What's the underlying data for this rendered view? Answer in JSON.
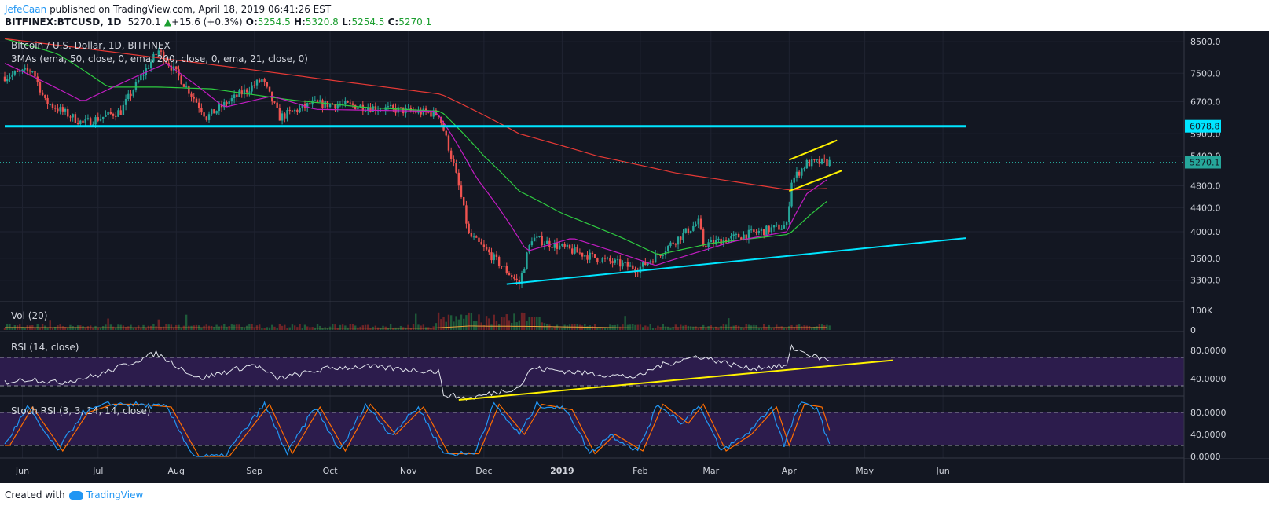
{
  "header": {
    "author": "JefeCaan",
    "published": "published on TradingView.com, April 18, 2019 06:41:26 EST",
    "symbol": "BITFINEX:BTCUSD, 1D",
    "last": "5270.1",
    "change": "+15.6 (+0.3%)",
    "o_label": "O:",
    "o": "5254.5",
    "h_label": "H:",
    "h": "5320.8",
    "l_label": "L:",
    "l": "5254.5",
    "c_label": "C:",
    "c": "5270.1"
  },
  "footer": {
    "created_with": "Created with",
    "brand": "TradingView"
  },
  "colors": {
    "bg": "#131722",
    "up": "#26a69a",
    "down": "#ef5350",
    "cyan": "#00e5ff",
    "yellow": "#fff200",
    "ema50": "#2ecc40",
    "ema200": "#e53935",
    "ema21": "#c21cc2",
    "rsi_fill": "#2c1c4c",
    "stoch_k": "#2196f3",
    "stoch_d": "#ff6d00"
  },
  "chart_data": [
    {
      "type": "candlestick",
      "title": "Bitcoin / U.S. Dollar, 1D, BITFINEX",
      "indicator_label": "3MAs (ema, 50, close, 0, ema, 200, close, 0, ema, 21, close, 0)",
      "x_ticks": [
        "Jun",
        "Jul",
        "Aug",
        "Sep",
        "Oct",
        "Nov",
        "Dec",
        "2019",
        "Feb",
        "Mar",
        "Apr",
        "May",
        "Jun"
      ],
      "y_ticks": [
        8500.0,
        7500.0,
        6700.0,
        5900.0,
        5400.0,
        4800.0,
        4400.0,
        4000.0,
        3600.0,
        3300.0
      ],
      "y_tick_labels": [
        "8500.0",
        "7500.0",
        "6700.0",
        "5900.0",
        "5400.0",
        "4800.0",
        "4400.0",
        "4000.0",
        "3600.0",
        "3300.0"
      ],
      "y_scale": "log",
      "ylim": [
        3050,
        8800
      ],
      "price_labels": [
        {
          "value": 6078.8,
          "text": "6078.8",
          "color": "#00e5ff"
        },
        {
          "value": 5270.1,
          "text": "5270.1",
          "color": "#26a69a"
        }
      ],
      "close_anchors": [
        {
          "date": "2018-05-25",
          "close": 7400
        },
        {
          "date": "2018-06-05",
          "close": 7600
        },
        {
          "date": "2018-06-10",
          "close": 6700
        },
        {
          "date": "2018-06-25",
          "close": 6150
        },
        {
          "date": "2018-07-10",
          "close": 6450
        },
        {
          "date": "2018-07-25",
          "close": 8200
        },
        {
          "date": "2018-08-13",
          "close": 6300
        },
        {
          "date": "2018-09-04",
          "close": 7300
        },
        {
          "date": "2018-09-11",
          "close": 6300
        },
        {
          "date": "2018-09-24",
          "close": 6650
        },
        {
          "date": "2018-10-10",
          "close": 6600
        },
        {
          "date": "2018-11-13",
          "close": 6380
        },
        {
          "date": "2018-11-19",
          "close": 5200
        },
        {
          "date": "2018-11-25",
          "close": 3950
        },
        {
          "date": "2018-12-15",
          "close": 3250
        },
        {
          "date": "2018-12-20",
          "close": 3900
        },
        {
          "date": "2019-01-10",
          "close": 3650
        },
        {
          "date": "2019-01-31",
          "close": 3450
        },
        {
          "date": "2019-02-08",
          "close": 3650
        },
        {
          "date": "2019-02-24",
          "close": 4150
        },
        {
          "date": "2019-02-26",
          "close": 3800
        },
        {
          "date": "2019-03-31",
          "close": 4100
        },
        {
          "date": "2019-04-02",
          "close": 4900
        },
        {
          "date": "2019-04-08",
          "close": 5250
        },
        {
          "date": "2019-04-17",
          "close": 5270.1
        }
      ],
      "series": [
        {
          "name": "EMA 50",
          "color": "#2ecc40",
          "points": [
            {
              "date": "2018-05-25",
              "value": 8600
            },
            {
              "date": "2018-06-15",
              "value": 8100
            },
            {
              "date": "2018-07-05",
              "value": 7100
            },
            {
              "date": "2018-07-25",
              "value": 7100
            },
            {
              "date": "2018-08-15",
              "value": 7050
            },
            {
              "date": "2018-09-15",
              "value": 6750
            },
            {
              "date": "2018-10-15",
              "value": 6550
            },
            {
              "date": "2018-11-14",
              "value": 6450
            },
            {
              "date": "2018-12-01",
              "value": 5400
            },
            {
              "date": "2018-12-15",
              "value": 4700
            },
            {
              "date": "2019-01-01",
              "value": 4300
            },
            {
              "date": "2019-01-25",
              "value": 3900
            },
            {
              "date": "2019-02-08",
              "value": 3650
            },
            {
              "date": "2019-03-01",
              "value": 3820
            },
            {
              "date": "2019-04-01",
              "value": 3960
            },
            {
              "date": "2019-04-10",
              "value": 4300
            },
            {
              "date": "2019-04-17",
              "value": 4550
            }
          ]
        },
        {
          "name": "EMA 200",
          "color": "#e53935",
          "points": [
            {
              "date": "2018-05-25",
              "value": 8600
            },
            {
              "date": "2018-08-01",
              "value": 7900
            },
            {
              "date": "2018-10-01",
              "value": 7300
            },
            {
              "date": "2018-11-14",
              "value": 6900
            },
            {
              "date": "2018-12-15",
              "value": 5900
            },
            {
              "date": "2019-01-15",
              "value": 5400
            },
            {
              "date": "2019-02-15",
              "value": 5050
            },
            {
              "date": "2019-04-01",
              "value": 4720
            },
            {
              "date": "2019-04-17",
              "value": 4750
            }
          ]
        },
        {
          "name": "EMA 21",
          "color": "#c21cc2",
          "points": [
            {
              "date": "2018-05-25",
              "value": 7800
            },
            {
              "date": "2018-06-25",
              "value": 6700
            },
            {
              "date": "2018-07-28",
              "value": 7800
            },
            {
              "date": "2018-08-20",
              "value": 6550
            },
            {
              "date": "2018-09-08",
              "value": 6850
            },
            {
              "date": "2018-09-25",
              "value": 6500
            },
            {
              "date": "2018-11-12",
              "value": 6450
            },
            {
              "date": "2018-11-28",
              "value": 4950
            },
            {
              "date": "2018-12-18",
              "value": 3700
            },
            {
              "date": "2019-01-05",
              "value": 3900
            },
            {
              "date": "2019-02-07",
              "value": 3500
            },
            {
              "date": "2019-03-10",
              "value": 3850
            },
            {
              "date": "2019-03-31",
              "value": 4000
            },
            {
              "date": "2019-04-08",
              "value": 4650
            },
            {
              "date": "2019-04-17",
              "value": 4950
            }
          ]
        }
      ],
      "trendlines": [
        {
          "name": "horizontal-resistance",
          "color": "#00e5ff",
          "from": {
            "date": "2018-05-25",
            "value": 6078.8
          },
          "to": {
            "date": "2019-06-10",
            "value": 6078.8
          }
        },
        {
          "name": "ascending-support",
          "color": "#00e5ff",
          "from": {
            "date": "2018-12-10",
            "value": 3250
          },
          "to": {
            "date": "2019-06-10",
            "value": 3900
          }
        },
        {
          "name": "channel-upper",
          "color": "#fff200",
          "from": {
            "date": "2019-04-01",
            "value": 5320
          },
          "to": {
            "date": "2019-04-20",
            "value": 5750
          }
        },
        {
          "name": "channel-lower",
          "color": "#fff200",
          "from": {
            "date": "2019-04-01",
            "value": 4700
          },
          "to": {
            "date": "2019-04-22",
            "value": 5100
          }
        }
      ]
    },
    {
      "type": "bar",
      "title": "Vol (20)",
      "y_tick_labels": [
        "100K",
        "0"
      ],
      "y_ticks": [
        100000,
        0
      ],
      "volume_ma_anchors": [
        {
          "date": "2018-05-25",
          "value": 12000
        },
        {
          "date": "2018-11-10",
          "value": 9000
        },
        {
          "date": "2018-11-25",
          "value": 20000
        },
        {
          "date": "2018-12-20",
          "value": 18000
        },
        {
          "date": "2019-01-31",
          "value": 10000
        },
        {
          "date": "2019-04-17",
          "value": 12000
        }
      ]
    },
    {
      "type": "line",
      "title": "RSI (14, close)",
      "y_ticks": [
        80,
        40
      ],
      "y_tick_labels": [
        "80.0000",
        "40.0000"
      ],
      "bands": [
        70,
        30
      ],
      "rsi_anchors": [
        {
          "date": "2018-05-25",
          "value": 35
        },
        {
          "date": "2018-06-05",
          "value": 40
        },
        {
          "date": "2018-06-15",
          "value": 34
        },
        {
          "date": "2018-07-01",
          "value": 45
        },
        {
          "date": "2018-07-24",
          "value": 76
        },
        {
          "date": "2018-08-10",
          "value": 40
        },
        {
          "date": "2018-09-01",
          "value": 60
        },
        {
          "date": "2018-09-10",
          "value": 40
        },
        {
          "date": "2018-10-01",
          "value": 55
        },
        {
          "date": "2018-10-15",
          "value": 57
        },
        {
          "date": "2018-11-13",
          "value": 50
        },
        {
          "date": "2018-11-15",
          "value": 18
        },
        {
          "date": "2018-11-25",
          "value": 12
        },
        {
          "date": "2018-12-15",
          "value": 28
        },
        {
          "date": "2018-12-20",
          "value": 55
        },
        {
          "date": "2019-01-10",
          "value": 48
        },
        {
          "date": "2019-01-31",
          "value": 42
        },
        {
          "date": "2019-02-08",
          "value": 58
        },
        {
          "date": "2019-02-24",
          "value": 72
        },
        {
          "date": "2019-03-15",
          "value": 55
        },
        {
          "date": "2019-03-31",
          "value": 58
        },
        {
          "date": "2019-04-02",
          "value": 84
        },
        {
          "date": "2019-04-12",
          "value": 70
        },
        {
          "date": "2019-04-17",
          "value": 67
        }
      ],
      "trendline": {
        "color": "#fff200",
        "from": {
          "date": "2018-11-21",
          "value": 10
        },
        "to": {
          "date": "2019-05-12",
          "value": 66
        }
      }
    },
    {
      "type": "line",
      "title": "Stoch RSI (3, 3, 14, 14, close)",
      "y_ticks": [
        80,
        40,
        0
      ],
      "y_tick_labels": [
        "80.0000",
        "40.0000",
        "0.0000"
      ],
      "bands": [
        80,
        20
      ],
      "k_anchors": [
        {
          "date": "2018-05-25",
          "value": 20
        },
        {
          "date": "2018-06-03",
          "value": 90
        },
        {
          "date": "2018-06-15",
          "value": 10
        },
        {
          "date": "2018-06-25",
          "value": 80
        },
        {
          "date": "2018-07-05",
          "value": 95
        },
        {
          "date": "2018-07-15",
          "value": 95
        },
        {
          "date": "2018-07-28",
          "value": 90
        },
        {
          "date": "2018-08-08",
          "value": 0
        },
        {
          "date": "2018-08-20",
          "value": 0
        },
        {
          "date": "2018-09-05",
          "value": 95
        },
        {
          "date": "2018-09-14",
          "value": 5
        },
        {
          "date": "2018-09-25",
          "value": 90
        },
        {
          "date": "2018-10-05",
          "value": 10
        },
        {
          "date": "2018-10-15",
          "value": 95
        },
        {
          "date": "2018-10-25",
          "value": 40
        },
        {
          "date": "2018-11-05",
          "value": 90
        },
        {
          "date": "2018-11-15",
          "value": 5
        },
        {
          "date": "2018-11-27",
          "value": 5
        },
        {
          "date": "2018-12-05",
          "value": 95
        },
        {
          "date": "2018-12-15",
          "value": 40
        },
        {
          "date": "2018-12-22",
          "value": 95
        },
        {
          "date": "2019-01-03",
          "value": 85
        },
        {
          "date": "2019-01-12",
          "value": 5
        },
        {
          "date": "2019-01-20",
          "value": 40
        },
        {
          "date": "2019-01-31",
          "value": 10
        },
        {
          "date": "2019-02-08",
          "value": 95
        },
        {
          "date": "2019-02-18",
          "value": 60
        },
        {
          "date": "2019-02-24",
          "value": 95
        },
        {
          "date": "2019-03-05",
          "value": 10
        },
        {
          "date": "2019-03-15",
          "value": 40
        },
        {
          "date": "2019-03-25",
          "value": 90
        },
        {
          "date": "2019-03-30",
          "value": 20
        },
        {
          "date": "2019-04-05",
          "value": 95
        },
        {
          "date": "2019-04-12",
          "value": 90
        },
        {
          "date": "2019-04-17",
          "value": 20
        }
      ]
    }
  ]
}
